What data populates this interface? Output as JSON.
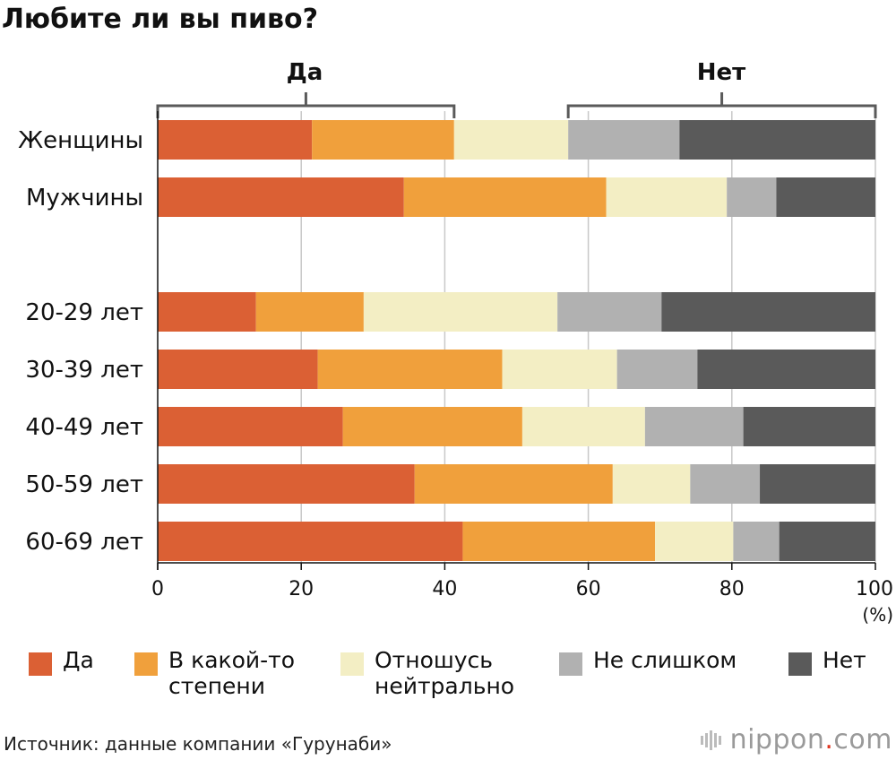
{
  "title": "Любите ли вы пиво?",
  "groups": {
    "yes": "Да",
    "no": "Нет"
  },
  "unit": "(%)",
  "source": "Источник: данные компании «Гурунаби»",
  "brand": {
    "name": "nippon",
    "dot": ".",
    "tld": "com"
  },
  "colors": {
    "yes": "#db6034",
    "somewhat": "#f0a03c",
    "neutral": "#f3eec4",
    "not_much": "#b1b1b1",
    "no": "#5a5a5a"
  },
  "chart_data": {
    "type": "bar",
    "orientation": "horizontal",
    "stacked": true,
    "title": "Любите ли вы пиво?",
    "xlabel": "(%)",
    "xlim": [
      0,
      100
    ],
    "xticks": [
      0,
      20,
      40,
      60,
      80,
      100
    ],
    "grid": true,
    "legend_position": "bottom",
    "categories": [
      "Женщины",
      "Мужчины",
      "20-29 лет",
      "30-39 лет",
      "40-49 лет",
      "50-59 лет",
      "60-69 лет"
    ],
    "series": [
      {
        "name": "Да",
        "key": "yes",
        "values": [
          21.5,
          34.3,
          13.7,
          22.3,
          25.8,
          35.8,
          42.5
        ]
      },
      {
        "name": "В какой-то\nстепени",
        "key": "somewhat",
        "values": [
          19.8,
          28.2,
          15.0,
          25.7,
          25.0,
          27.6,
          26.8
        ]
      },
      {
        "name": "Отношусь\nнейтрально",
        "key": "neutral",
        "values": [
          15.9,
          16.8,
          27.0,
          16.0,
          17.1,
          10.8,
          10.9
        ]
      },
      {
        "name": "Не слишком",
        "key": "not_much",
        "values": [
          15.5,
          6.9,
          14.5,
          11.2,
          13.7,
          9.7,
          6.4
        ]
      },
      {
        "name": "Нет",
        "key": "no",
        "values": [
          27.3,
          13.8,
          29.8,
          24.8,
          18.4,
          16.1,
          13.4
        ]
      }
    ]
  }
}
